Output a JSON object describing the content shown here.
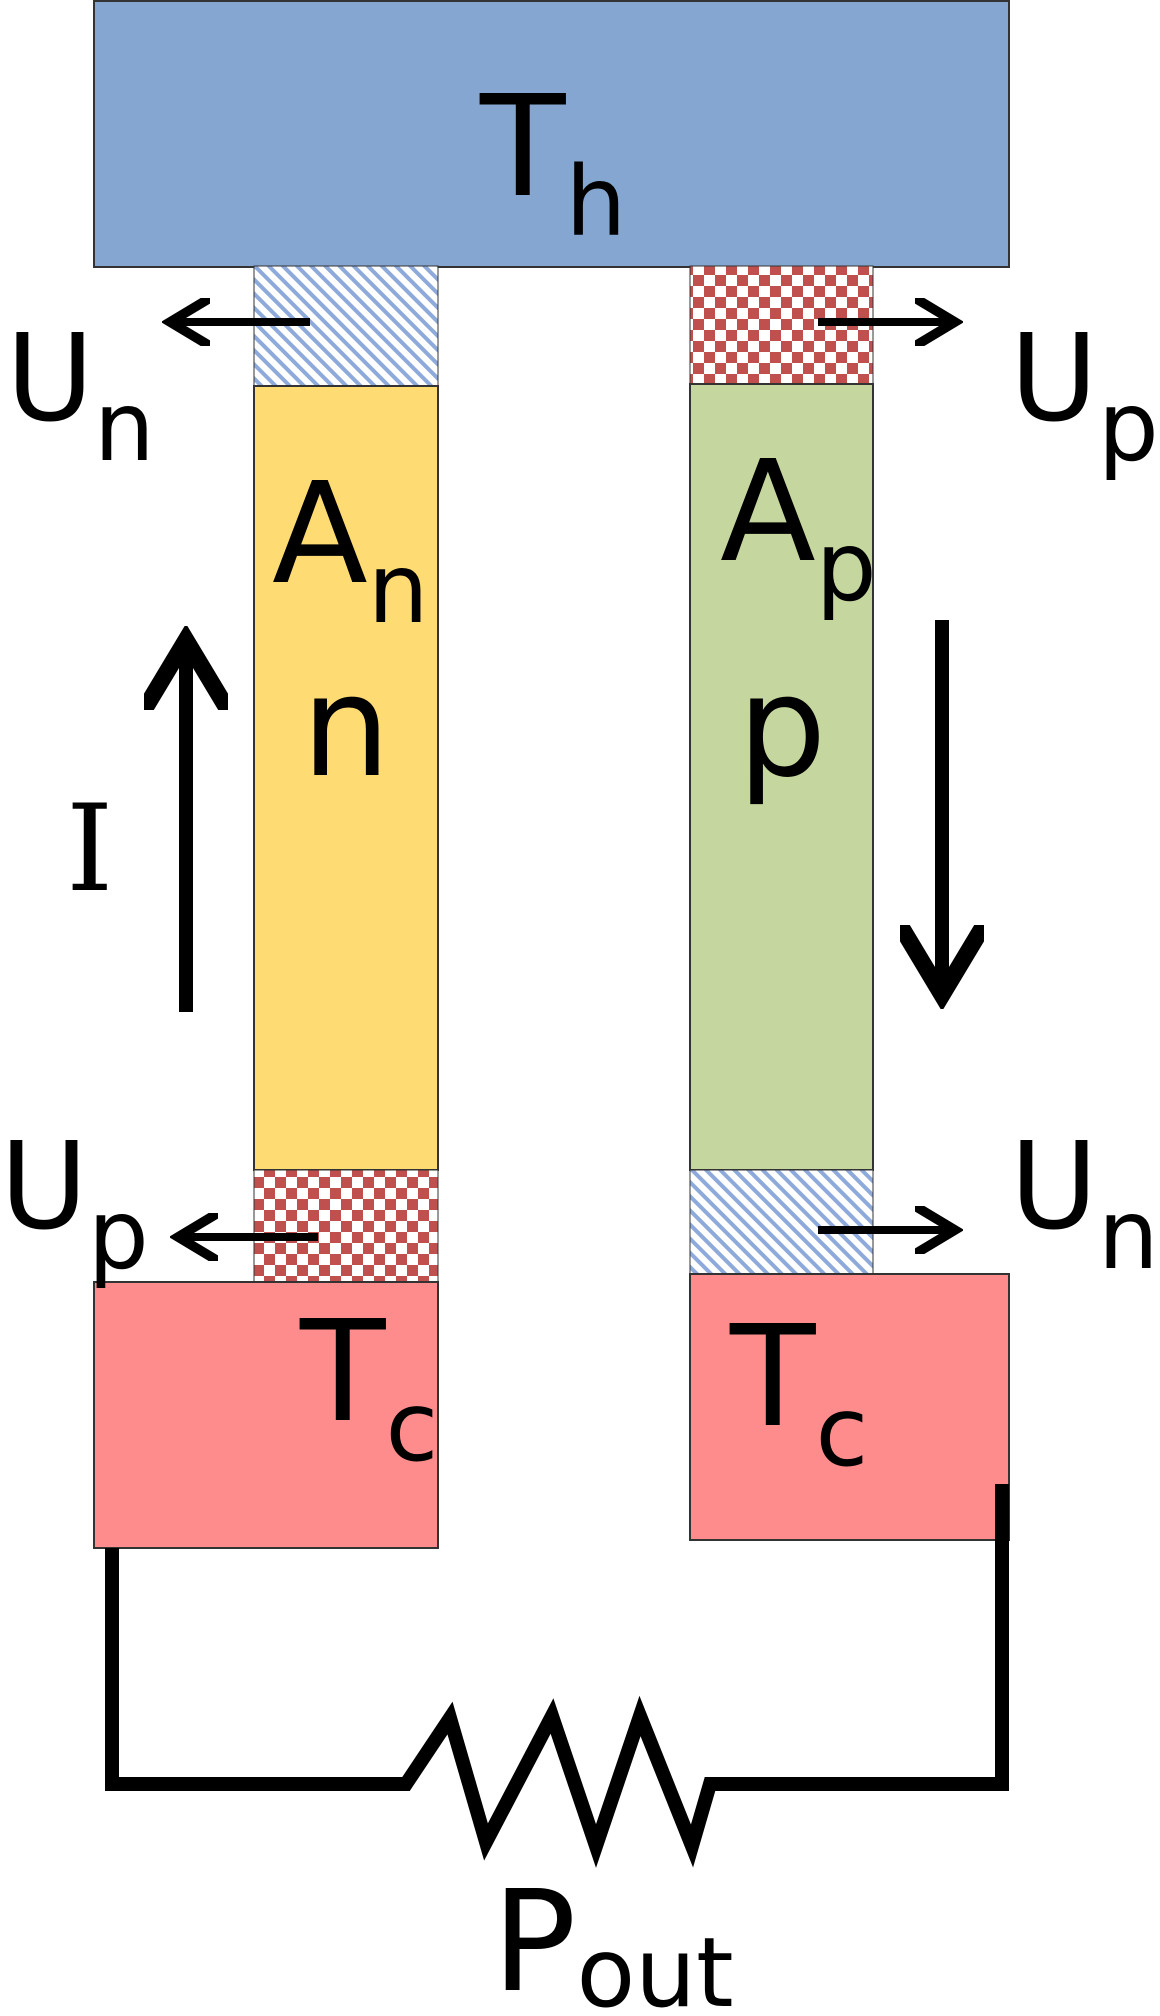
{
  "colors": {
    "hot": "#85a6d0",
    "cold": "#fe8c8c",
    "n_leg": "#ffdb74",
    "p_leg": "#c5d79f",
    "checker": "#c0504d",
    "hatch": "#8eaadb"
  },
  "hot_reservoir": {
    "main": "T",
    "sub": "h"
  },
  "cold_left": {
    "main": "T",
    "sub": "c"
  },
  "cold_right": {
    "main": "T",
    "sub": "c"
  },
  "n_leg": {
    "area_main": "A",
    "area_sub": "n",
    "type": "n"
  },
  "p_leg": {
    "area_main": "A",
    "area_sub": "p",
    "type": "p"
  },
  "current": {
    "label": "I"
  },
  "interfaces": {
    "top_left": {
      "main": "U",
      "sub": "n"
    },
    "top_right": {
      "main": "U",
      "sub": "p"
    },
    "bottom_left": {
      "main": "U",
      "sub": "p"
    },
    "bottom_right": {
      "main": "U",
      "sub": "n"
    }
  },
  "load": {
    "main": "P",
    "sub": "out"
  }
}
